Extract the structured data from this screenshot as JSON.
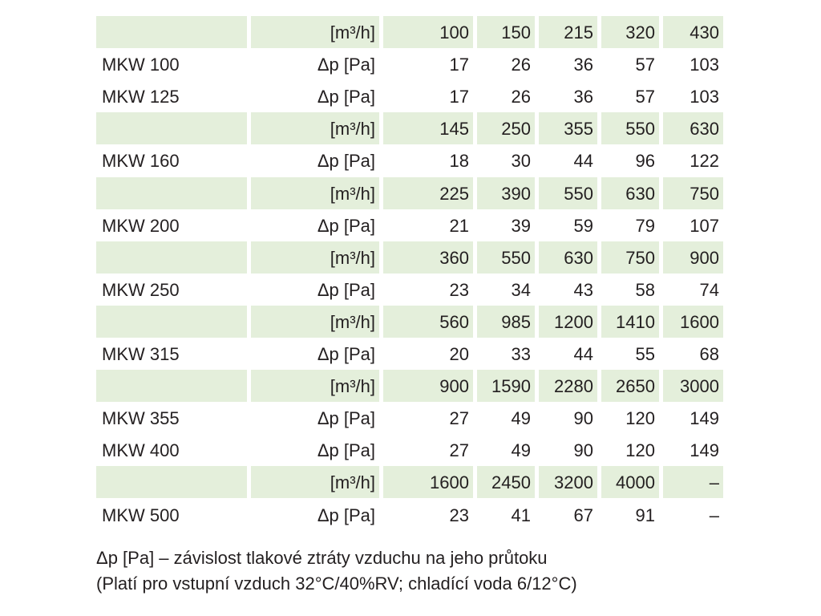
{
  "table": {
    "rows": [
      {
        "unit": "[m³/h]",
        "values": [
          "100",
          "150",
          "215",
          "320",
          "430"
        ]
      },
      {
        "label": "MKW 100",
        "unit": "Δp [Pa]",
        "values": [
          "17",
          "26",
          "36",
          "57",
          "103"
        ]
      },
      {
        "label": "MKW 125",
        "unit": "Δp [Pa]",
        "values": [
          "17",
          "26",
          "36",
          "57",
          "103"
        ]
      },
      {
        "unit": "[m³/h]",
        "values": [
          "145",
          "250",
          "355",
          "550",
          "630"
        ]
      },
      {
        "label": "MKW 160",
        "unit": "Δp [Pa]",
        "values": [
          "18",
          "30",
          "44",
          "96",
          "122"
        ]
      },
      {
        "unit": "[m³/h]",
        "values": [
          "225",
          "390",
          "550",
          "630",
          "750"
        ]
      },
      {
        "label": "MKW 200",
        "unit": "Δp [Pa]",
        "values": [
          "21",
          "39",
          "59",
          "79",
          "107"
        ]
      },
      {
        "unit": "[m³/h]",
        "values": [
          "360",
          "550",
          "630",
          "750",
          "900"
        ]
      },
      {
        "label": "MKW 250",
        "unit": "Δp [Pa]",
        "values": [
          "23",
          "34",
          "43",
          "58",
          "74"
        ]
      },
      {
        "unit": "[m³/h]",
        "values": [
          "560",
          "985",
          "1200",
          "1410",
          "1600"
        ]
      },
      {
        "label": "MKW 315",
        "unit": "Δp [Pa]",
        "values": [
          "20",
          "33",
          "44",
          "55",
          "68"
        ]
      },
      {
        "unit": "[m³/h]",
        "values": [
          "900",
          "1590",
          "2280",
          "2650",
          "3000"
        ]
      },
      {
        "label": "MKW 355",
        "unit": "Δp [Pa]",
        "values": [
          "27",
          "49",
          "90",
          "120",
          "149"
        ]
      },
      {
        "label": "MKW 400",
        "unit": "Δp [Pa]",
        "values": [
          "27",
          "49",
          "90",
          "120",
          "149"
        ]
      },
      {
        "unit": "[m³/h]",
        "values": [
          "1600",
          "2450",
          "3200",
          "4000",
          "–"
        ]
      },
      {
        "label": "MKW 500",
        "unit": "Δp [Pa]",
        "values": [
          "23",
          "41",
          "67",
          "91",
          "–"
        ]
      }
    ]
  },
  "notes": [
    "Δp [Pa] – závislost tlakové ztráty vzduchu na jeho průtoku",
    "(Platí pro vstupní vzduch 32°C/40%RV; chladící voda 6/12°C)"
  ]
}
